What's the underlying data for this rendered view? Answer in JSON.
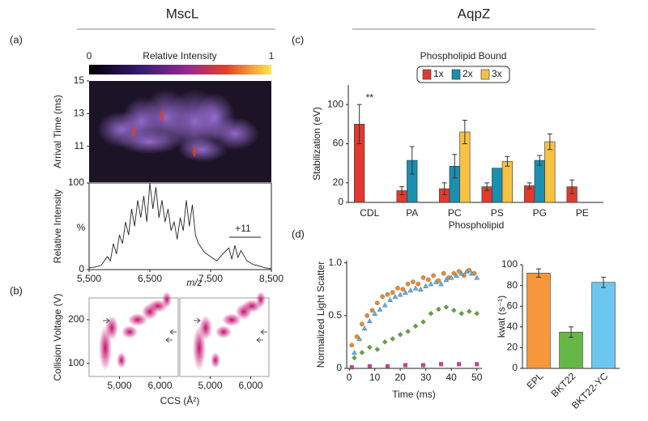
{
  "headers": [
    "MscL",
    "AqpZ"
  ],
  "panel_labels": [
    "(a)",
    "(b)",
    "(c)",
    "(d)"
  ],
  "chart_data": [
    {
      "type": "heatmap",
      "colorbar_labels": [
        "0",
        "Relative Intensity",
        "1"
      ],
      "ylabel": "Arrival Time (ms)",
      "ylim": [
        8.8,
        15
      ],
      "yticks": [
        11,
        13,
        15
      ]
    },
    {
      "type": "line",
      "ylabel": "Relative Intensity",
      "xlabel": "m/z",
      "annotations": [
        "%",
        "+11"
      ],
      "color": "#222222",
      "xlim": [
        5500,
        8500
      ],
      "ylim": [
        0,
        100
      ],
      "xticks": [
        {
          "value": 5500,
          "label": "5,500"
        },
        {
          "value": 6500,
          "label": "6,500"
        },
        {
          "value": 7500,
          "label": "7,500"
        },
        {
          "value": 8500,
          "label": "8,500"
        }
      ],
      "yticks": [
        0,
        100
      ],
      "x": [
        5500,
        5600,
        5700,
        5800,
        5850,
        5900,
        5950,
        6000,
        6050,
        6100,
        6150,
        6200,
        6250,
        6300,
        6350,
        6400,
        6450,
        6500,
        6550,
        6600,
        6650,
        6700,
        6750,
        6800,
        6850,
        6900,
        6950,
        7000,
        7050,
        7100,
        7150,
        7200,
        7250,
        7300,
        7400,
        7500,
        7600,
        7700,
        7800,
        7850,
        7900,
        7950,
        8000,
        8100,
        8200,
        8300,
        8400,
        8500
      ],
      "values": [
        2,
        3,
        5,
        15,
        10,
        30,
        18,
        40,
        30,
        55,
        40,
        70,
        50,
        80,
        60,
        85,
        55,
        100,
        70,
        95,
        60,
        80,
        55,
        70,
        45,
        55,
        35,
        60,
        45,
        80,
        50,
        75,
        40,
        30,
        20,
        15,
        10,
        18,
        25,
        12,
        28,
        14,
        22,
        10,
        6,
        4,
        2,
        1
      ]
    },
    {
      "type": "heatmap",
      "ylabel": "Collision Voltage (V)",
      "xlabel": "CCS (Å²)",
      "xlim": [
        4250,
        6450
      ],
      "ylim": [
        70,
        250
      ],
      "yticks": [
        100,
        200
      ],
      "xticks": [
        {
          "value": 5000,
          "label": "5,000"
        },
        {
          "value": 6000,
          "label": "6,000"
        }
      ]
    },
    {
      "type": "heatmap",
      "xlim": [
        4250,
        6450
      ],
      "ylim": [
        70,
        250
      ],
      "xticks": [
        {
          "value": 5000,
          "label": "5,000"
        },
        {
          "value": 6000,
          "label": "6,000"
        }
      ]
    },
    {
      "type": "bar",
      "ylabel": "Stabilization (eV)",
      "xlabel": "Phospholipid",
      "legend_title": "Phospholipid Bound",
      "annotations": [
        "**"
      ],
      "categories": [
        "CDL",
        "PA",
        "PC",
        "PS",
        "PG",
        "PE"
      ],
      "ylim": [
        0,
        120
      ],
      "yticks": [
        0,
        20,
        60,
        100
      ],
      "series": [
        {
          "name": "1x",
          "color": "#e03a2f",
          "values": [
            80,
            12,
            14,
            16,
            17,
            16
          ],
          "errors": [
            20,
            4,
            6,
            4,
            3,
            7
          ]
        },
        {
          "name": "2x",
          "color": "#1a8fb0",
          "values": [
            null,
            43,
            37,
            35,
            43,
            null
          ],
          "errors": [
            null,
            14,
            12,
            null,
            5,
            null
          ]
        },
        {
          "name": "3x",
          "color": "#f5c242",
          "values": [
            null,
            null,
            72,
            42,
            62,
            null
          ],
          "errors": [
            null,
            null,
            12,
            5,
            8,
            null
          ]
        }
      ]
    },
    {
      "type": "scatter",
      "ylabel": "Normalized Light Scatter",
      "xlabel": "Time (ms)",
      "xlim": [
        -1,
        52
      ],
      "ylim": [
        0,
        1.02
      ],
      "xticks": [
        0,
        10,
        20,
        30,
        40,
        50
      ],
      "yticks": [
        0,
        0.5,
        {
          "value": 1,
          "label": "1.0"
        }
      ],
      "series": [
        {
          "color": "#f08a2c",
          "marker": "circle",
          "x": [
            1,
            3,
            5,
            7,
            9,
            11,
            13,
            15,
            17,
            19,
            21,
            23,
            25,
            27,
            29,
            31,
            33,
            35,
            37,
            39,
            41,
            43,
            45,
            47,
            49
          ],
          "values": [
            0.22,
            0.3,
            0.42,
            0.5,
            0.55,
            0.62,
            0.68,
            0.7,
            0.72,
            0.76,
            0.75,
            0.8,
            0.82,
            0.8,
            0.86,
            0.84,
            0.88,
            0.83,
            0.9,
            0.86,
            0.9,
            0.92,
            0.88,
            0.93,
            0.9
          ]
        },
        {
          "color": "#5ab4e6",
          "marker": "triangle",
          "x": [
            2,
            4,
            6,
            8,
            10,
            12,
            14,
            16,
            18,
            20,
            22,
            24,
            26,
            28,
            30,
            32,
            34,
            36,
            38,
            40,
            42,
            44,
            46,
            48,
            50
          ],
          "values": [
            0.15,
            0.28,
            0.38,
            0.45,
            0.52,
            0.56,
            0.6,
            0.65,
            0.68,
            0.7,
            0.72,
            0.74,
            0.76,
            0.75,
            0.78,
            0.8,
            0.82,
            0.8,
            0.84,
            0.86,
            0.88,
            0.9,
            0.92,
            0.9,
            0.86
          ]
        },
        {
          "color": "#5fa83a",
          "marker": "diamond",
          "x": [
            2,
            5,
            8,
            11,
            14,
            17,
            20,
            23,
            26,
            29,
            32,
            35,
            38,
            41,
            44,
            47,
            50
          ],
          "values": [
            0.1,
            0.15,
            0.2,
            0.18,
            0.25,
            0.28,
            0.32,
            0.35,
            0.4,
            0.44,
            0.52,
            0.56,
            0.58,
            0.55,
            0.52,
            0.54,
            0.52
          ]
        },
        {
          "color": "#e0359a",
          "marker": "square",
          "x": [
            1,
            8,
            15,
            22,
            29,
            36,
            43,
            50
          ],
          "values": [
            0.01,
            0.02,
            0.02,
            0.03,
            0.03,
            0.04,
            0.04,
            0.04
          ]
        }
      ]
    },
    {
      "type": "bar",
      "ylabel": "kwat (s⁻¹)",
      "categories": [
        "EPL",
        "BKT22",
        "BKT22-YC"
      ],
      "ylim": [
        0,
        100
      ],
      "yticks": [
        0,
        20,
        40,
        60,
        80,
        100
      ],
      "series": [
        {
          "colors": [
            "#f5973a",
            "#66b846",
            "#6cc7f0"
          ],
          "values": [
            92,
            35,
            83
          ],
          "errors": [
            4,
            5,
            5
          ]
        }
      ]
    }
  ]
}
